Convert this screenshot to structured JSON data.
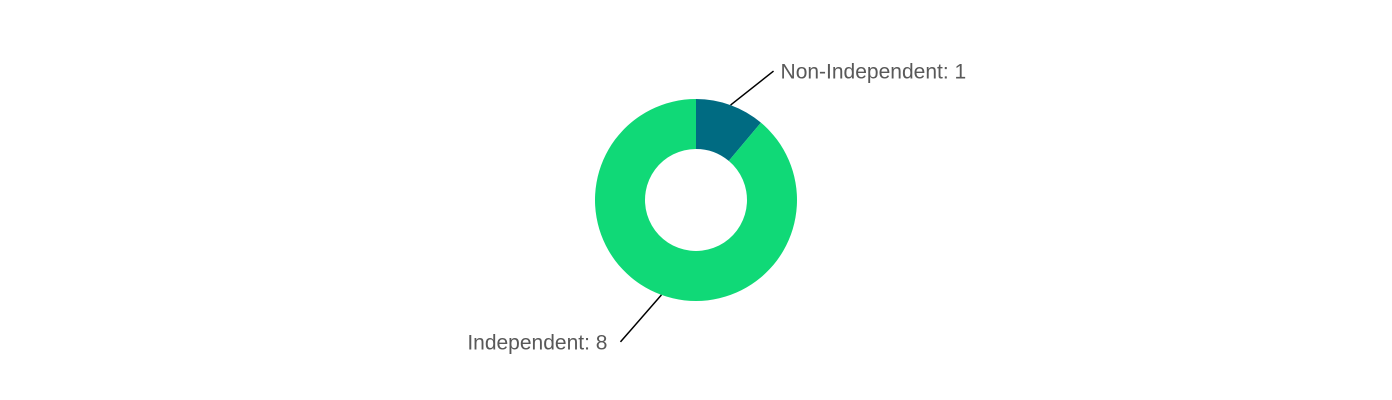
{
  "chart_data": {
    "type": "donut",
    "categories": [
      "Non-Independent",
      "Independent"
    ],
    "values": [
      1,
      8
    ],
    "value_labels": [
      "Non-Independent: 1",
      "Independent: 8"
    ],
    "colors": [
      "#006b82",
      "#10d977"
    ]
  }
}
